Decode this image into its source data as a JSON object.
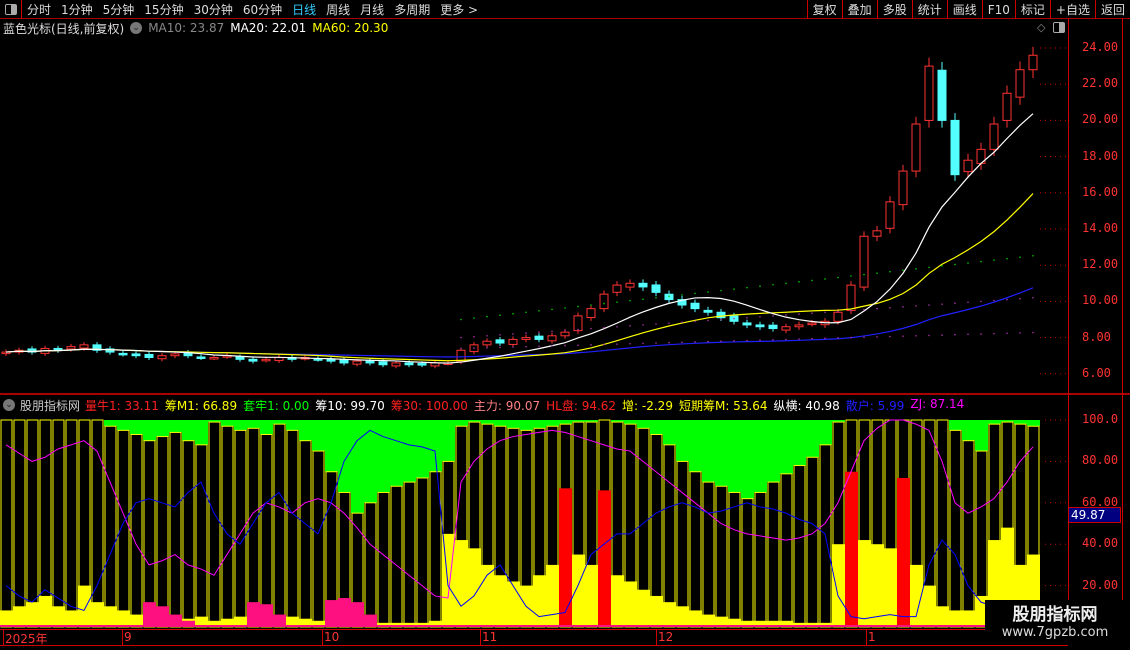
{
  "toolbar": {
    "periods": [
      "分时",
      "1分钟",
      "5分钟",
      "15分钟",
      "30分钟",
      "60分钟",
      "日线",
      "周线",
      "月线",
      "多周期",
      "更多 >"
    ],
    "active": "日线",
    "right_buttons": [
      "复权",
      "叠加",
      "多股",
      "统计",
      "画线",
      "F10",
      "标记",
      "+自选",
      "返回"
    ]
  },
  "info": {
    "title": "蓝色光标(日线,前复权)",
    "ma10": "MA10: 23.87",
    "ma20": "MA20: 22.01",
    "ma60": "MA60: 20.30"
  },
  "colors": {
    "up": "#ff3333",
    "down": "#54ffff",
    "ma10": "#ffffff",
    "ma20": "#ffff00",
    "ma60": "#2020ff",
    "green": "#00ff00",
    "yellow": "#ffff00",
    "red": "#ff0000",
    "pink": "#ff1080",
    "zj": "#ff00ff",
    "sanhu": "#0000ff"
  },
  "price_axis": [
    "24.00",
    "22.00",
    "20.00",
    "18.00",
    "16.00",
    "14.00",
    "12.00",
    "10.00",
    "8.00",
    "6.00"
  ],
  "closes": [
    7.2,
    7.3,
    7.2,
    7.4,
    7.3,
    7.5,
    7.6,
    7.3,
    7.2,
    7.1,
    7.0,
    6.9,
    7.0,
    7.1,
    7.0,
    6.9,
    6.9,
    7.0,
    6.8,
    6.7,
    6.8,
    6.9,
    6.8,
    6.9,
    6.8,
    6.7,
    6.6,
    6.7,
    6.6,
    6.5,
    6.6,
    6.5,
    6.5,
    6.6,
    6.6,
    7.3,
    7.6,
    7.8,
    7.7,
    7.9,
    8.0,
    7.9,
    8.1,
    8.3,
    9.2,
    9.6,
    10.4,
    10.9,
    11.0,
    10.8,
    10.5,
    10.1,
    9.8,
    9.6,
    9.4,
    9.1,
    8.9,
    8.7,
    8.6,
    8.5,
    8.6,
    8.7,
    8.8,
    8.9,
    9.4,
    10.9,
    13.6,
    13.9,
    15.5,
    17.2,
    19.8,
    23.0,
    20.0,
    17.0,
    17.8,
    18.4,
    19.8,
    21.5,
    22.8,
    23.6
  ],
  "indicator": {
    "name": "股朋指标网",
    "legend": [
      {
        "label": "量牛1: 33.11",
        "color": "#ff2020"
      },
      {
        "label": "筹M1: 66.89",
        "color": "#ffff00"
      },
      {
        "label": "套牢1: 0.00",
        "color": "#00ff00"
      },
      {
        "label": "筹10: 99.70",
        "color": "#ffffff"
      },
      {
        "label": "筹30: 100.00",
        "color": "#ff2020"
      },
      {
        "label": "主力: 90.07",
        "color": "#ff8080"
      },
      {
        "label": "HL盘: 94.62",
        "color": "#ff2020"
      },
      {
        "label": "增: -2.29",
        "color": "#ffff00"
      },
      {
        "label": "短期筹M: 53.64",
        "color": "#ffff00"
      },
      {
        "label": "纵横: 40.98",
        "color": "#ffffff"
      },
      {
        "label": "散户: 5.99",
        "color": "#2020ff"
      },
      {
        "label": "ZJ: 87.14",
        "color": "#ff00ff"
      }
    ],
    "axis": [
      "100.0",
      "80.00",
      "60.00",
      "40.00",
      "20.00"
    ],
    "current_value": "49.87",
    "bars": [
      100,
      100,
      100,
      100,
      100,
      100,
      100,
      100,
      97,
      95,
      93,
      90,
      92,
      94,
      90,
      88,
      99,
      97,
      95,
      96,
      93,
      98,
      95,
      90,
      85,
      75,
      65,
      55,
      60,
      65,
      68,
      70,
      72,
      75,
      80,
      97,
      99,
      98,
      97,
      96,
      95,
      96,
      97,
      98,
      99,
      99,
      100,
      99,
      98,
      96,
      93,
      88,
      80,
      75,
      70,
      68,
      65,
      62,
      65,
      70,
      74,
      78,
      82,
      88,
      99,
      100,
      100,
      100,
      100,
      100,
      100,
      100,
      100,
      95,
      90,
      85,
      98,
      99,
      98,
      97
    ],
    "yellow": [
      8,
      10,
      12,
      15,
      10,
      8,
      20,
      12,
      10,
      8,
      6,
      5,
      4,
      3,
      4,
      5,
      3,
      4,
      5,
      4,
      3,
      4,
      5,
      4,
      3,
      4,
      5,
      3,
      2,
      2,
      2,
      2,
      2,
      3,
      45,
      42,
      38,
      30,
      25,
      22,
      20,
      25,
      30,
      40,
      35,
      30,
      28,
      25,
      22,
      18,
      15,
      12,
      10,
      8,
      6,
      5,
      4,
      3,
      3,
      3,
      3,
      2,
      2,
      2,
      40,
      45,
      42,
      40,
      38,
      35,
      30,
      20,
      10,
      8,
      8,
      15,
      42,
      48,
      30,
      35
    ],
    "pink": [
      0,
      0,
      0,
      0,
      0,
      0,
      0,
      0,
      0,
      0,
      0,
      12,
      10,
      6,
      3,
      0,
      0,
      0,
      0,
      12,
      11,
      6,
      0,
      0,
      0,
      13,
      14,
      12,
      6,
      0,
      0,
      0,
      0,
      0,
      0,
      0,
      0,
      0,
      0,
      0,
      0,
      0,
      0,
      0,
      0,
      0,
      0,
      0,
      0,
      0,
      0,
      0,
      0,
      0,
      0,
      0,
      0,
      0,
      0,
      0,
      0,
      0,
      0,
      0,
      0,
      0,
      0,
      0,
      0,
      0,
      0,
      0,
      0,
      0,
      0,
      0,
      0,
      0,
      0,
      0
    ],
    "red": [
      0,
      0,
      0,
      0,
      0,
      0,
      0,
      0,
      0,
      0,
      0,
      0,
      0,
      0,
      0,
      0,
      0,
      0,
      0,
      0,
      0,
      0,
      0,
      0,
      0,
      0,
      0,
      0,
      0,
      0,
      0,
      0,
      0,
      0,
      0,
      0,
      0,
      0,
      0,
      0,
      0,
      0,
      0,
      67,
      0,
      0,
      66,
      0,
      0,
      0,
      0,
      0,
      0,
      0,
      0,
      0,
      0,
      0,
      0,
      0,
      0,
      0,
      0,
      0,
      0,
      75,
      0,
      0,
      0,
      72,
      0,
      0,
      0,
      0,
      0,
      0,
      0,
      0,
      0,
      0
    ],
    "zj": [
      88,
      84,
      80,
      82,
      86,
      88,
      90,
      85,
      70,
      55,
      40,
      30,
      32,
      35,
      30,
      28,
      25,
      35,
      45,
      55,
      60,
      58,
      55,
      60,
      62,
      60,
      55,
      48,
      40,
      35,
      30,
      25,
      20,
      15,
      14,
      70,
      80,
      86,
      90,
      92,
      93,
      94,
      95,
      94,
      92,
      90,
      88,
      86,
      85,
      80,
      75,
      70,
      65,
      60,
      55,
      50,
      47,
      45,
      44,
      43,
      42,
      43,
      45,
      50,
      60,
      75,
      90,
      96,
      100,
      100,
      98,
      95,
      80,
      60,
      55,
      58,
      62,
      70,
      80,
      87
    ],
    "sanhu": [
      20,
      15,
      12,
      18,
      14,
      10,
      8,
      20,
      35,
      50,
      60,
      62,
      60,
      58,
      65,
      70,
      55,
      45,
      40,
      50,
      60,
      65,
      55,
      50,
      45,
      60,
      80,
      90,
      95,
      92,
      90,
      88,
      87,
      85,
      20,
      10,
      15,
      25,
      30,
      20,
      10,
      5,
      6,
      7,
      20,
      35,
      40,
      45,
      45,
      50,
      55,
      58,
      60,
      58,
      55,
      56,
      58,
      60,
      58,
      57,
      55,
      52,
      50,
      45,
      15,
      5,
      4,
      5,
      6,
      5,
      5,
      30,
      42,
      35,
      20,
      12,
      10,
      8,
      6,
      6
    ]
  },
  "date_axis": [
    "2025年",
    "9",
    "10",
    "11",
    "12",
    "1"
  ],
  "watermark": {
    "name": "股朋指标网",
    "url": "www.7gpzb.com"
  }
}
